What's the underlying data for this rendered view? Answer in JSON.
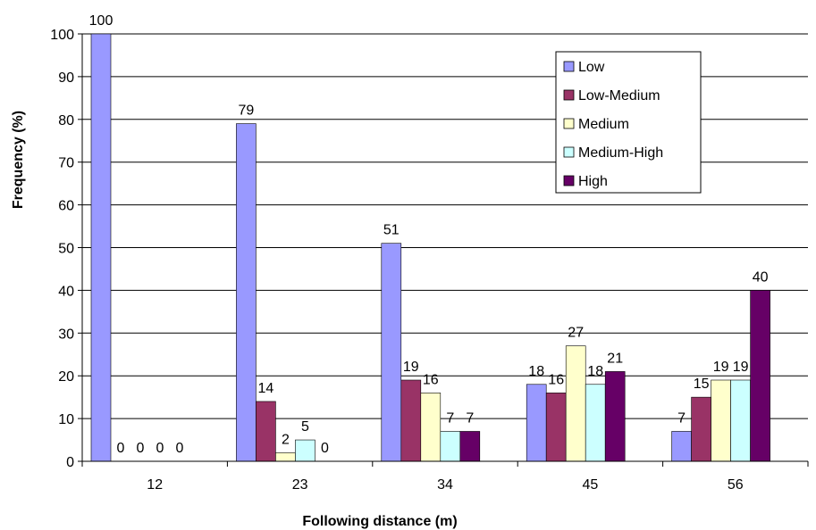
{
  "chart_data": {
    "type": "bar",
    "categories": [
      "12",
      "23",
      "34",
      "45",
      "56"
    ],
    "series": [
      {
        "name": "Low",
        "color": "#9999ff",
        "values": [
          100,
          79,
          51,
          18,
          7
        ]
      },
      {
        "name": "Low-Medium",
        "color": "#993366",
        "values": [
          0,
          14,
          19,
          16,
          15
        ]
      },
      {
        "name": "Medium",
        "color": "#ffffcc",
        "values": [
          0,
          2,
          16,
          27,
          19
        ]
      },
      {
        "name": "Medium-High",
        "color": "#ccffff",
        "values": [
          0,
          5,
          7,
          18,
          19
        ]
      },
      {
        "name": "High",
        "color": "#660066",
        "values": [
          0,
          0,
          7,
          21,
          40
        ]
      }
    ],
    "xlabel": "Following distance (m)",
    "ylabel": "Frequency (%)",
    "ylim": [
      0,
      100
    ],
    "yticks": [
      0,
      10,
      20,
      30,
      40,
      50,
      60,
      70,
      80,
      90,
      100
    ],
    "grid": true,
    "legend_position": "top-right"
  }
}
